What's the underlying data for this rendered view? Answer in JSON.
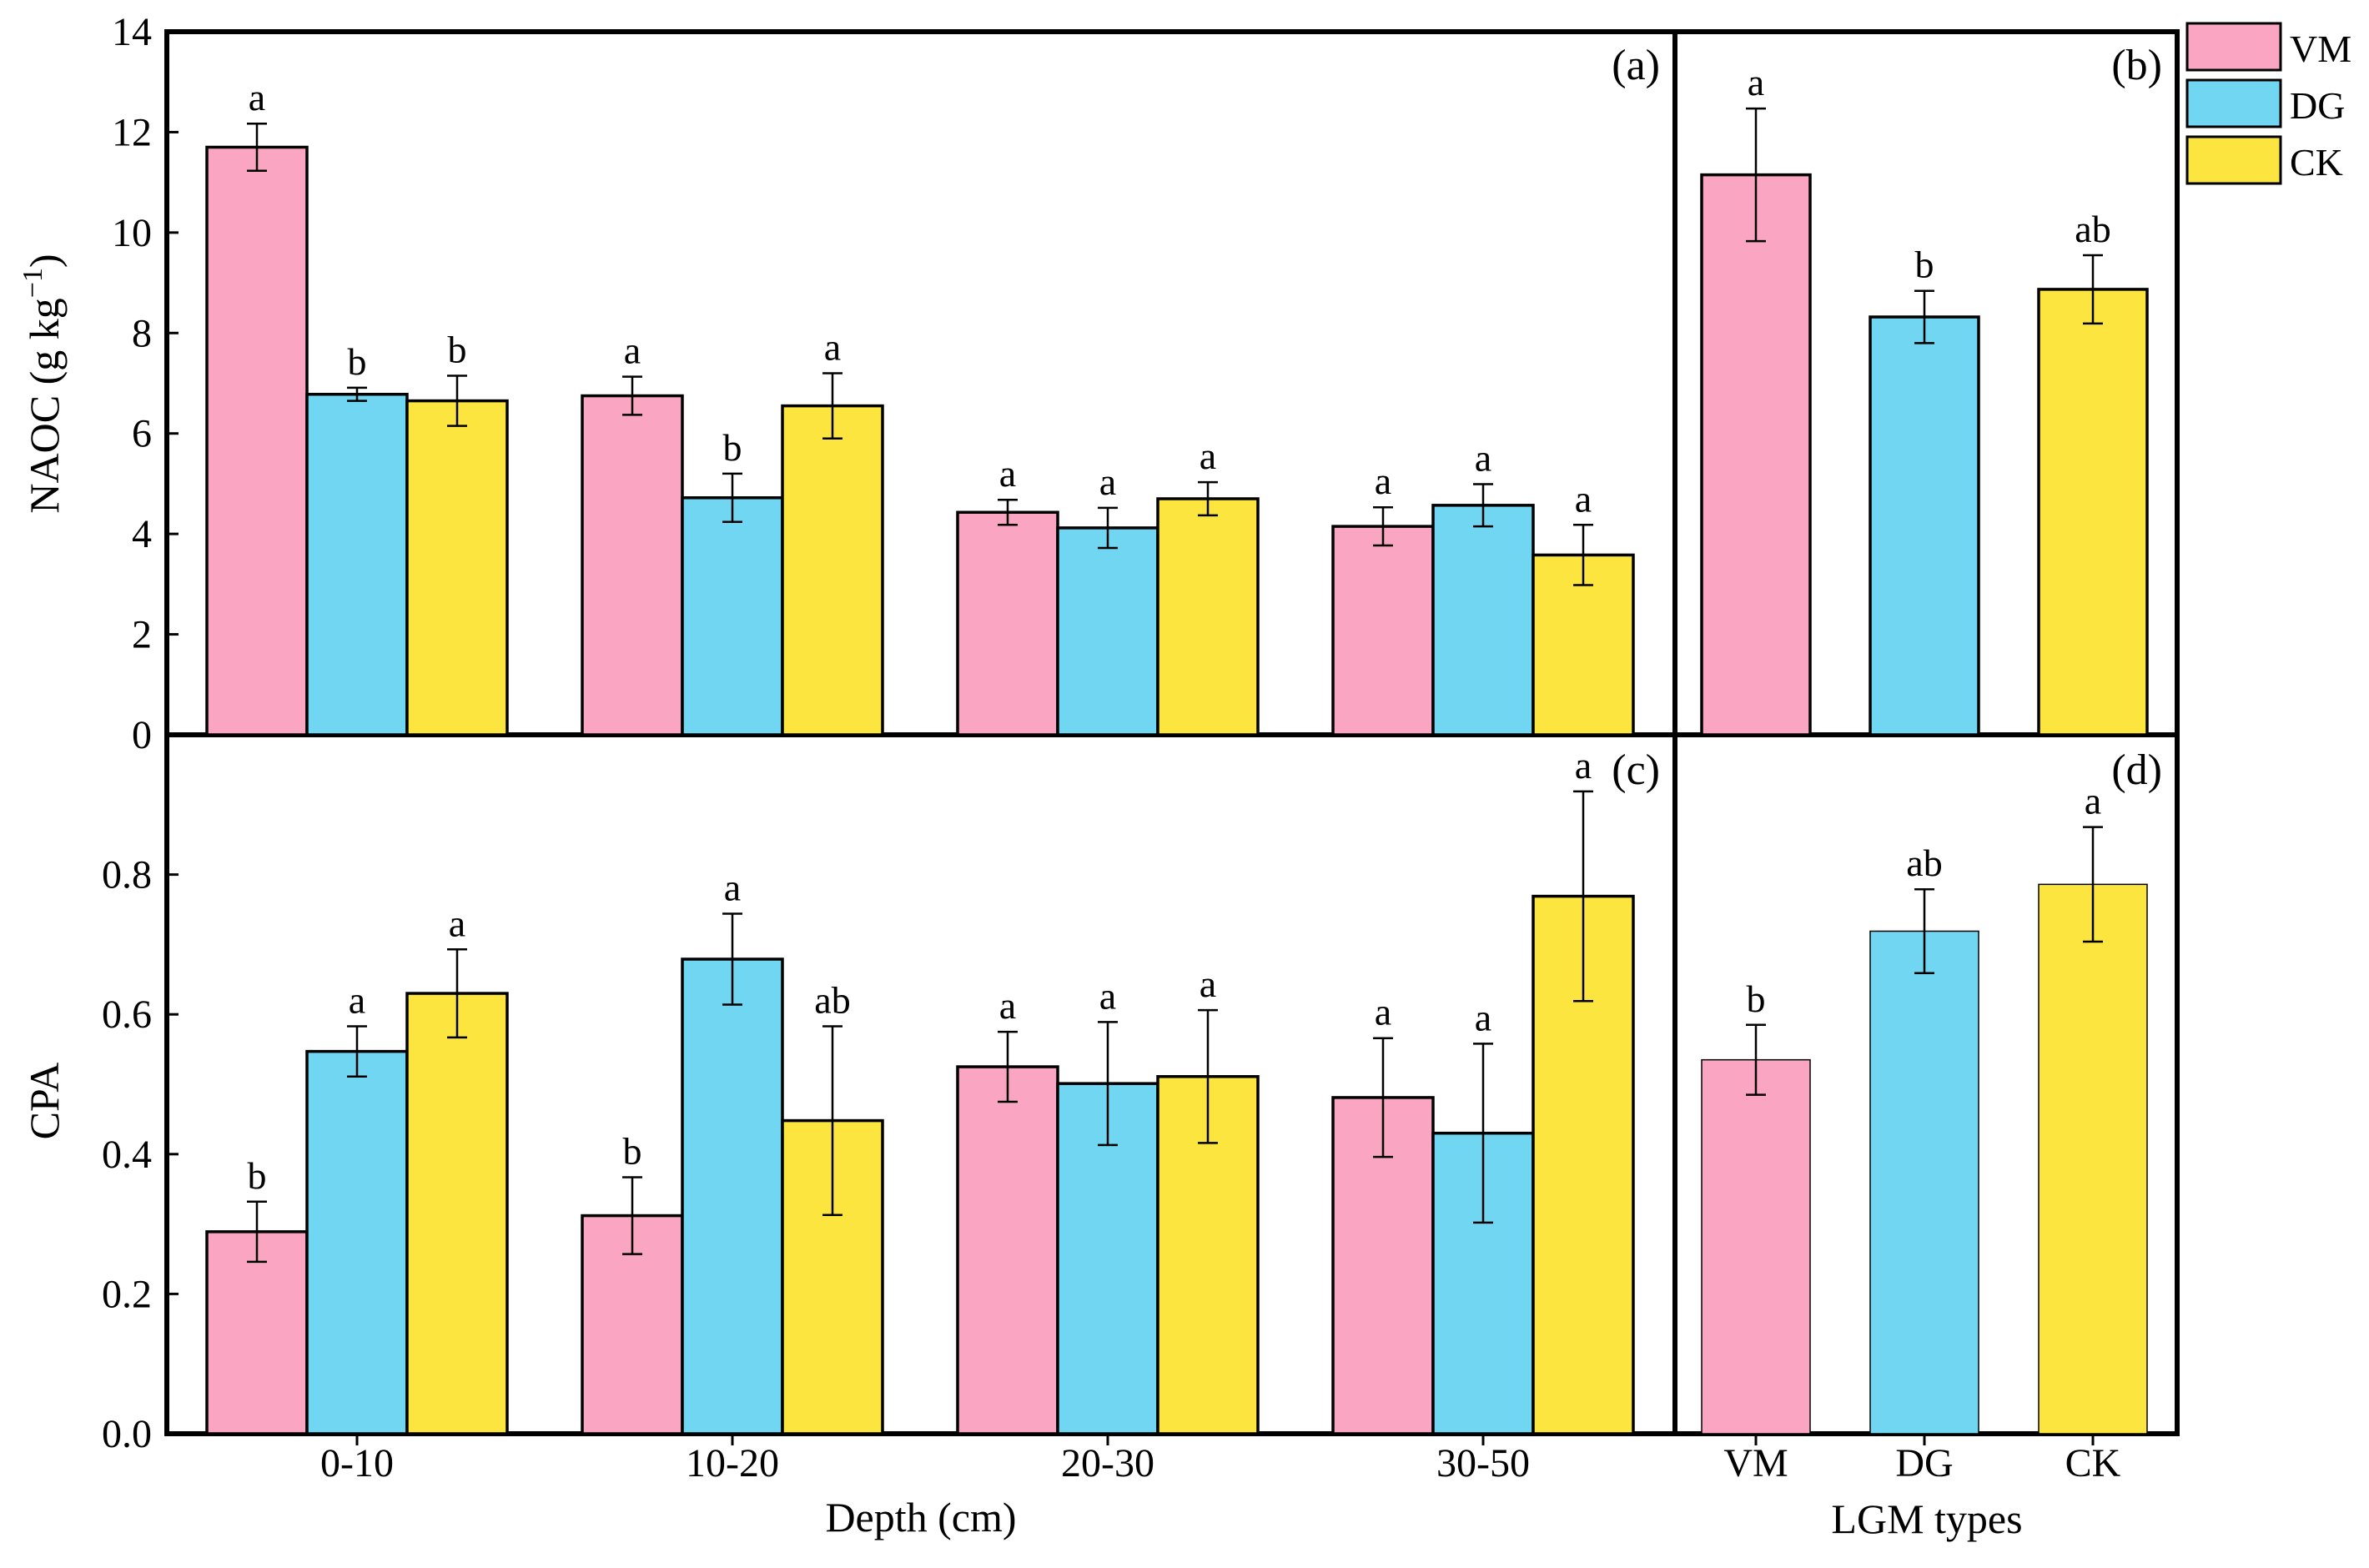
{
  "chart_data": {
    "type": "bar",
    "series_names": [
      "VM",
      "DG",
      "CK"
    ],
    "colors": {
      "VM": "#FAA5C2",
      "DG": "#70D6F2",
      "CK": "#FCE53E"
    },
    "depth_categories": [
      "0-10",
      "10-20",
      "20-30",
      "30-50"
    ],
    "type_categories": [
      "VM",
      "DG",
      "CK"
    ],
    "xlabel_depth": "Depth (cm)",
    "xlabel_types": "LGM types",
    "ylabel_top": "NAOC (g kg",
    "ylabel_top_sup": "−1",
    "ylabel_top_close": ")",
    "ylabel_bottom": "CPA",
    "top_yticks": [
      "0",
      "2",
      "4",
      "6",
      "8",
      "10",
      "12",
      "14"
    ],
    "bottom_yticks": [
      "0.0",
      "0.2",
      "0.4",
      "0.6",
      "0.8"
    ],
    "ylim_top": [
      0,
      14
    ],
    "ylim_bottom": [
      0,
      1.0
    ],
    "panels": {
      "a": {
        "label": "(a)",
        "series": [
          {
            "name": "VM",
            "values": [
              11.7,
              6.75,
              4.43,
              4.15
            ],
            "errors": [
              0.47,
              0.38,
              0.25,
              0.38
            ],
            "letters": [
              "a",
              "a",
              "a",
              "a"
            ]
          },
          {
            "name": "DG",
            "values": [
              6.78,
              4.72,
              4.12,
              4.57
            ],
            "errors": [
              0.13,
              0.48,
              0.4,
              0.42
            ],
            "letters": [
              "b",
              "b",
              "a",
              "a"
            ]
          },
          {
            "name": "CK",
            "values": [
              6.65,
              6.55,
              4.7,
              3.58
            ],
            "errors": [
              0.5,
              0.65,
              0.33,
              0.6
            ],
            "letters": [
              "b",
              "a",
              "a",
              "a"
            ]
          }
        ]
      },
      "b": {
        "label": "(b)",
        "values": [
          11.15,
          8.32,
          8.87
        ],
        "errors": [
          1.32,
          0.52,
          0.68
        ],
        "letters": [
          "a",
          "b",
          "ab"
        ]
      },
      "c": {
        "label": "(c)",
        "series": [
          {
            "name": "VM",
            "values": [
              0.289,
              0.312,
              0.525,
              0.481
            ],
            "errors": [
              0.043,
              0.055,
              0.05,
              0.085
            ],
            "letters": [
              "b",
              "b",
              "a",
              "a"
            ]
          },
          {
            "name": "DG",
            "values": [
              0.547,
              0.679,
              0.501,
              0.43
            ],
            "errors": [
              0.036,
              0.065,
              0.088,
              0.128
            ],
            "letters": [
              "a",
              "a",
              "a",
              "a"
            ]
          },
          {
            "name": "CK",
            "values": [
              0.63,
              0.448,
              0.511,
              0.769
            ],
            "errors": [
              0.063,
              0.135,
              0.095,
              0.15
            ],
            "letters": [
              "a",
              "ab",
              "a",
              "a"
            ]
          }
        ]
      },
      "d": {
        "label": "(d)",
        "values": [
          0.535,
          0.719,
          0.786
        ],
        "errors": [
          0.05,
          0.06,
          0.082
        ],
        "letters": [
          "b",
          "ab",
          "a"
        ]
      }
    },
    "legend": [
      "VM",
      "DG",
      "CK"
    ],
    "legend_position": "top-right"
  }
}
